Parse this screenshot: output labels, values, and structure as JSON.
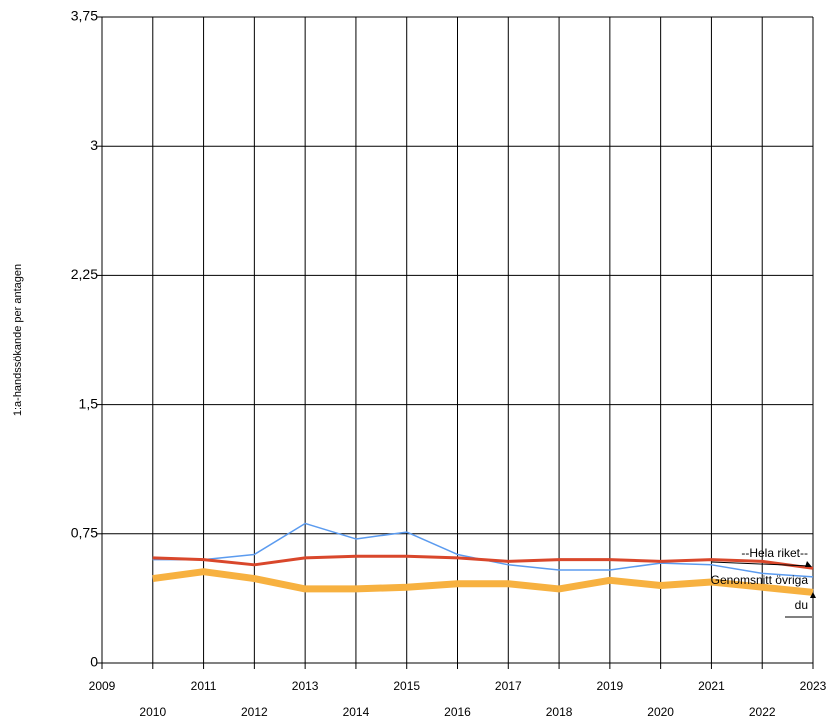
{
  "chart_data": {
    "type": "line",
    "y_label": "1:a-handssökande per antagen",
    "x": [
      2010,
      2011,
      2012,
      2013,
      2014,
      2015,
      2016,
      2017,
      2018,
      2019,
      2020,
      2021,
      2022,
      2023
    ],
    "series": [
      {
        "color": "#5b9bef",
        "values": [
          0.6,
          0.6,
          0.63,
          0.81,
          0.72,
          0.76,
          0.63,
          0.57,
          0.54,
          0.54,
          0.58,
          0.57,
          0.52,
          0.5
        ]
      },
      {
        "color": "#d9472b",
        "values": [
          0.61,
          0.6,
          0.57,
          0.61,
          0.62,
          0.62,
          0.61,
          0.59,
          0.6,
          0.6,
          0.59,
          0.6,
          0.59,
          0.55
        ]
      },
      {
        "color": "#f7b140",
        "values": [
          0.49,
          0.53,
          0.49,
          0.43,
          0.43,
          0.44,
          0.46,
          0.46,
          0.43,
          0.48,
          0.45,
          0.47,
          0.44,
          0.41
        ]
      }
    ],
    "annotations": [
      "--Hela riket--",
      "Genomsnitt övriga",
      "du"
    ],
    "xlim": [
      2009,
      2023
    ],
    "xticks": [
      2009,
      2010,
      2011,
      2012,
      2013,
      2014,
      2015,
      2016,
      2017,
      2018,
      2019,
      2020,
      2021,
      2022,
      2023
    ],
    "ylim": [
      0,
      3.75
    ],
    "yticks": [
      0,
      {
        "value": 0.75,
        "label": "0,75"
      },
      {
        "value": 1.5,
        "label": "1,5"
      },
      {
        "value": 2.25,
        "label": "2,25"
      },
      3,
      {
        "value": 3.75,
        "label": "3,75"
      }
    ],
    "grid": true
  }
}
